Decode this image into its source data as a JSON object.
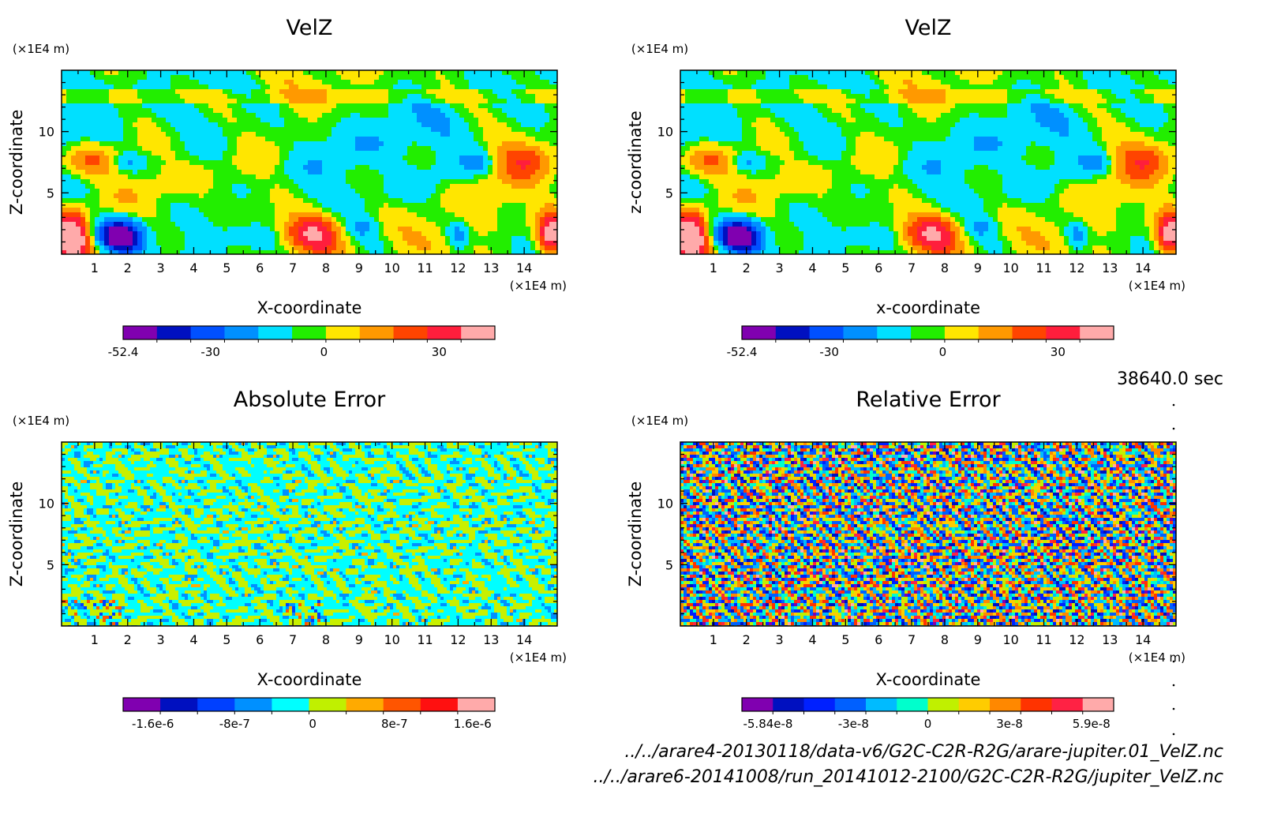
{
  "time_label": "38640.0 sec",
  "footer": {
    "file1": "../../arare4-20130118/data-v6/G2C-C2R-R2G/arare-jupiter.01_VelZ.nc",
    "file2": "../../arare6-20141008/run_20141012-2100/G2C-C2R-R2G/jupiter_VelZ.nc"
  },
  "chart_data": [
    {
      "type": "heatmap",
      "title": "VelZ",
      "xlabel": "X-coordinate",
      "ylabel": "Z-coordinate",
      "x_unit": "(×1E4 m)",
      "y_unit": "(×1E4 m)",
      "xlim": [
        0,
        15
      ],
      "ylim": [
        0,
        15
      ],
      "x_ticks": [
        1,
        2,
        3,
        4,
        5,
        6,
        7,
        8,
        9,
        10,
        11,
        12,
        13,
        14
      ],
      "y_ticks": [
        5,
        10
      ],
      "colorbar": {
        "colors": [
          "#8000b0",
          "#0010c0",
          "#0050ff",
          "#0090ff",
          "#00e0ff",
          "#22ee00",
          "#ffe600",
          "#ff9900",
          "#ff4400",
          "#ff1e3c",
          "#ffaaaa"
        ],
        "tick_labels": [
          "-52.4",
          "-30",
          "0",
          "30"
        ],
        "tick_positions": [
          0,
          0.235,
          0.54,
          0.85
        ]
      },
      "field": "velz"
    },
    {
      "type": "heatmap",
      "title": "VelZ",
      "xlabel": "x-coordinate",
      "ylabel": "z-coordinate",
      "x_unit": "(×1E4 m)",
      "y_unit": "(×1E4 m)",
      "xlim": [
        0,
        15
      ],
      "ylim": [
        0,
        15
      ],
      "x_ticks": [
        1,
        2,
        3,
        4,
        5,
        6,
        7,
        8,
        9,
        10,
        11,
        12,
        13,
        14
      ],
      "y_ticks": [
        5,
        10
      ],
      "colorbar": {
        "colors": [
          "#8000b0",
          "#0010c0",
          "#0050ff",
          "#0090ff",
          "#00e0ff",
          "#22ee00",
          "#ffe600",
          "#ff9900",
          "#ff4400",
          "#ff1e3c",
          "#ffaaaa"
        ],
        "tick_labels": [
          "-52.4",
          "-30",
          "0",
          "30"
        ],
        "tick_positions": [
          0,
          0.235,
          0.54,
          0.85
        ]
      },
      "field": "velz"
    },
    {
      "type": "heatmap",
      "title": "Absolute Error",
      "xlabel": "X-coordinate",
      "ylabel": "Z-coordinate",
      "x_unit": "(×1E4 m)",
      "y_unit": "(×1E4 m)",
      "xlim": [
        0,
        15
      ],
      "ylim": [
        0,
        15
      ],
      "x_ticks": [
        1,
        2,
        3,
        4,
        5,
        6,
        7,
        8,
        9,
        10,
        11,
        12,
        13,
        14
      ],
      "y_ticks": [
        5,
        10
      ],
      "colorbar": {
        "colors": [
          "#8000b0",
          "#0010c0",
          "#0040ff",
          "#0090ff",
          "#00ffff",
          "#c0f000",
          "#ffaa00",
          "#ff5500",
          "#ff1010",
          "#ffaaaa"
        ],
        "tick_labels": [
          "-1.6e-6",
          "-8e-7",
          "0",
          "8e-7",
          "1.6e-6"
        ],
        "tick_positions": [
          0.08,
          0.3,
          0.51,
          0.73,
          0.94
        ]
      },
      "field": "abserr"
    },
    {
      "type": "heatmap",
      "title": "Relative Error",
      "xlabel": "X-coordinate",
      "ylabel": "Z-coordinate",
      "x_unit": "(×1E4 m)",
      "y_unit": "(×1E4 m)",
      "xlim": [
        0,
        15
      ],
      "ylim": [
        0,
        15
      ],
      "x_ticks": [
        1,
        2,
        3,
        4,
        5,
        6,
        7,
        8,
        9,
        10,
        11,
        12,
        13,
        14
      ],
      "y_ticks": [
        5,
        10
      ],
      "colorbar": {
        "colors": [
          "#8000b0",
          "#0010c0",
          "#0020ff",
          "#0060ff",
          "#00bbff",
          "#00ffcc",
          "#c0f000",
          "#ffcc00",
          "#ff8800",
          "#ff3300",
          "#ff2244",
          "#ffaaaa"
        ],
        "tick_labels": [
          "-5.84e-8",
          "-3e-8",
          "0",
          "3e-8",
          "5.9e-8"
        ],
        "tick_positions": [
          0.07,
          0.3,
          0.5,
          0.72,
          0.94
        ]
      },
      "field": "relerr"
    }
  ]
}
